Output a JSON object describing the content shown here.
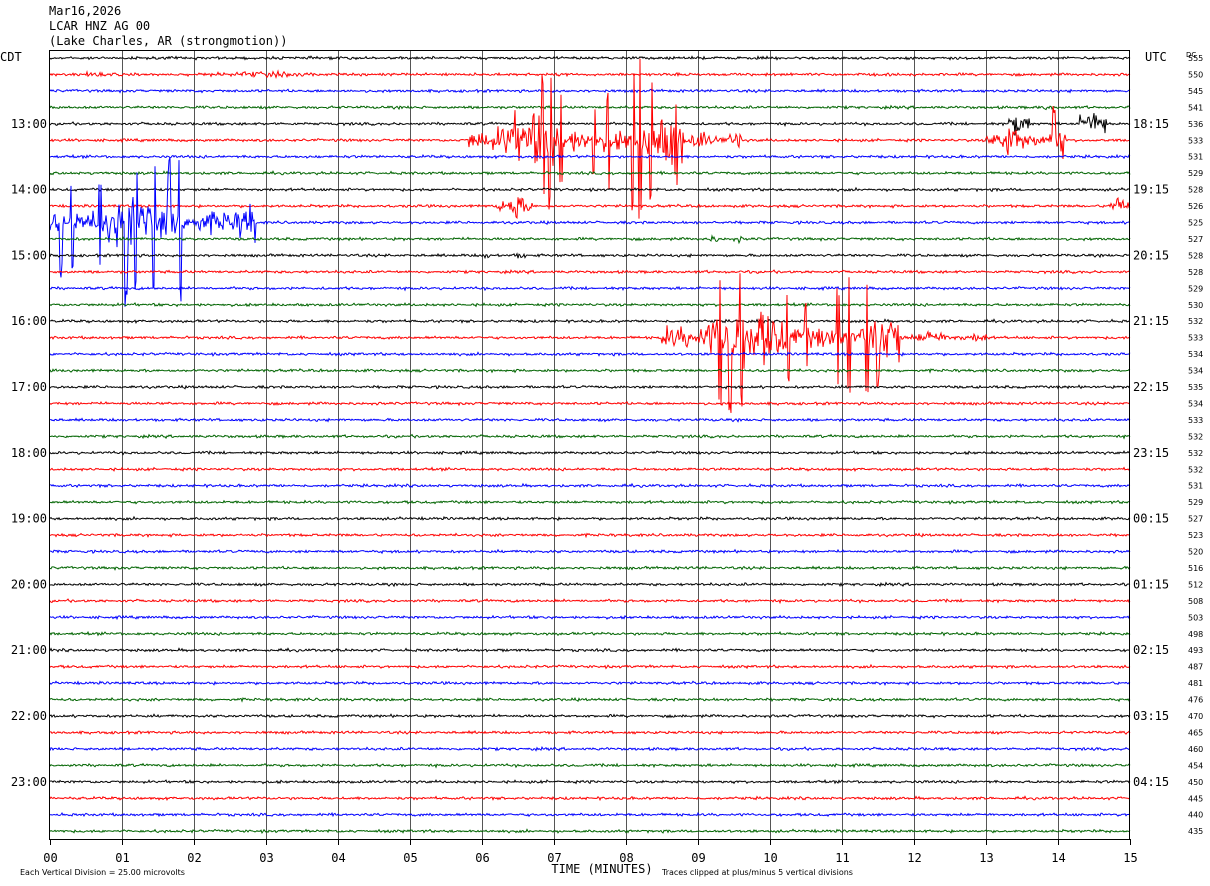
{
  "header": {
    "date": "Mar16,2026",
    "station": "LCAR HNZ AG 00",
    "location": "(Lake Charles, AR (strongmotion))"
  },
  "chart_data": {
    "type": "line",
    "title": "",
    "left_timezone": "CDT",
    "right_timezone": "UTC",
    "dc_label": "DC",
    "xlabel": "TIME (MINUTES)",
    "x_ticks": [
      "00",
      "01",
      "02",
      "03",
      "04",
      "05",
      "06",
      "07",
      "08",
      "09",
      "10",
      "11",
      "12",
      "13",
      "14",
      "15"
    ],
    "xlim": [
      0,
      15
    ],
    "left_hour_labels": [
      "13:00",
      "14:00",
      "15:00",
      "16:00",
      "17:00",
      "18:00",
      "19:00",
      "20:00",
      "21:00",
      "22:00",
      "23:00"
    ],
    "right_hour_labels": [
      "18:15",
      "19:15",
      "20:15",
      "21:15",
      "22:15",
      "23:15",
      "00:15",
      "01:15",
      "02:15",
      "03:15",
      "04:15"
    ],
    "trace_colors": [
      "#000000",
      "#ff0000",
      "#0000ff",
      "#006400"
    ],
    "dc_offsets": [
      555,
      550,
      545,
      541,
      536,
      533,
      531,
      529,
      528,
      526,
      525,
      527,
      528,
      528,
      529,
      530,
      532,
      533,
      534,
      534,
      535,
      534,
      533,
      532,
      532,
      532,
      531,
      529,
      527,
      523,
      520,
      516,
      512,
      508,
      503,
      498,
      493,
      487,
      481,
      476,
      470,
      465,
      460,
      454,
      450,
      445,
      440,
      435
    ],
    "bursts": [
      {
        "trace": 1,
        "start_min": 0.0,
        "end_min": 4.0,
        "amp": 2.5
      },
      {
        "trace": 3,
        "start_min": 13.6,
        "end_min": 14.1,
        "amp": 2.5
      },
      {
        "trace": 4,
        "start_min": 13.3,
        "end_min": 13.6,
        "amp": 14
      },
      {
        "trace": 4,
        "start_min": 14.3,
        "end_min": 14.7,
        "amp": 18
      },
      {
        "trace": 5,
        "start_min": 5.8,
        "end_min": 8.8,
        "amp": 22
      },
      {
        "trace": 5,
        "start_min": 8.8,
        "end_min": 9.6,
        "amp": 8
      },
      {
        "trace": 5,
        "start_min": 13.0,
        "end_min": 14.1,
        "amp": 14
      },
      {
        "trace": 9,
        "start_min": 6.2,
        "end_min": 6.7,
        "amp": 14
      },
      {
        "trace": 9,
        "start_min": 14.7,
        "end_min": 15.0,
        "amp": 12
      },
      {
        "trace": 10,
        "start_min": 0.0,
        "end_min": 2.85,
        "amp": 24
      },
      {
        "trace": 11,
        "start_min": 9.0,
        "end_min": 9.6,
        "amp": 3
      },
      {
        "trace": 12,
        "start_min": 5.9,
        "end_min": 6.6,
        "amp": 2.5
      },
      {
        "trace": 17,
        "start_min": 8.5,
        "end_min": 11.8,
        "amp": 25
      },
      {
        "trace": 17,
        "start_min": 11.8,
        "end_min": 13.0,
        "amp": 6
      }
    ],
    "spikes": [
      {
        "trace": 5,
        "min": 6.85,
        "amp": 75
      },
      {
        "trace": 5,
        "min": 6.95,
        "amp": 80
      },
      {
        "trace": 5,
        "min": 7.1,
        "amp": 55
      },
      {
        "trace": 5,
        "min": 7.55,
        "amp": 40
      },
      {
        "trace": 5,
        "min": 7.75,
        "amp": 50
      },
      {
        "trace": 5,
        "min": 8.1,
        "amp": 80
      },
      {
        "trace": 5,
        "min": 8.2,
        "amp": 85
      },
      {
        "trace": 5,
        "min": 8.35,
        "amp": 60
      },
      {
        "trace": 5,
        "min": 8.7,
        "amp": 45
      },
      {
        "trace": 5,
        "min": 13.95,
        "amp": 35
      },
      {
        "trace": 10,
        "min": 0.15,
        "amp": 55
      },
      {
        "trace": 10,
        "min": 0.3,
        "amp": 50
      },
      {
        "trace": 10,
        "min": 0.7,
        "amp": 45
      },
      {
        "trace": 10,
        "min": 1.05,
        "amp": 85
      },
      {
        "trace": 10,
        "min": 1.2,
        "amp": 70
      },
      {
        "trace": 10,
        "min": 1.45,
        "amp": 75
      },
      {
        "trace": 10,
        "min": 1.65,
        "amp": 65
      },
      {
        "trace": 10,
        "min": 1.8,
        "amp": 80
      },
      {
        "trace": 17,
        "min": 9.3,
        "amp": 80
      },
      {
        "trace": 17,
        "min": 9.45,
        "amp": 82
      },
      {
        "trace": 17,
        "min": 9.6,
        "amp": 70
      },
      {
        "trace": 17,
        "min": 10.25,
        "amp": 45
      },
      {
        "trace": 17,
        "min": 10.5,
        "amp": 40
      },
      {
        "trace": 17,
        "min": 10.95,
        "amp": 60
      },
      {
        "trace": 17,
        "min": 11.1,
        "amp": 70
      },
      {
        "trace": 17,
        "min": 11.35,
        "amp": 55
      },
      {
        "trace": 17,
        "min": 11.5,
        "amp": 50
      }
    ],
    "grid": true
  },
  "footer": {
    "left_note": "Each Vertical Division =   25.00 microvolts",
    "right_note": "Traces clipped at plus/minus 5 vertical divisions"
  }
}
